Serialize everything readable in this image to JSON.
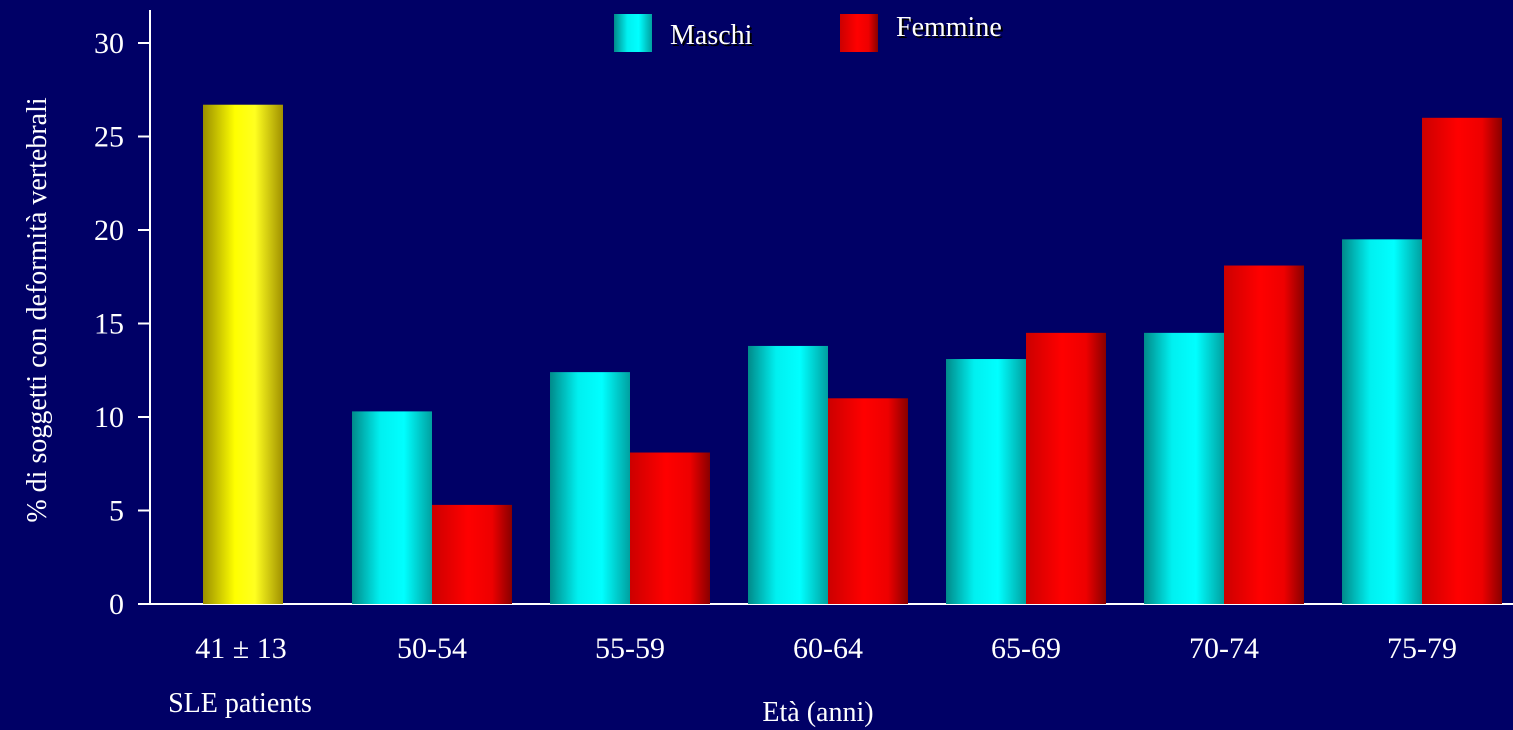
{
  "chart_data": {
    "type": "bar",
    "categories": [
      "41 ± 13",
      "50-54",
      "55-59",
      "60-64",
      "65-69",
      "70-74",
      "75-79"
    ],
    "group_label": "SLE patients",
    "xlabel": "Età (anni)",
    "ylabel": "% di soggetti con deformità vertebrali",
    "ylim": [
      0,
      31
    ],
    "yticks": [
      0,
      5,
      10,
      15,
      20,
      25,
      30
    ],
    "legend_position": "top-center",
    "series": [
      {
        "name": "Maschi",
        "color": "#00e8e8",
        "values": [
          null,
          10.3,
          12.4,
          13.8,
          13.1,
          14.5,
          19.5
        ]
      },
      {
        "name": "Femmine",
        "color": "#ff0000",
        "values": [
          null,
          5.3,
          8.1,
          11.0,
          14.5,
          18.1,
          26.0
        ]
      }
    ],
    "highlight": {
      "name": "",
      "color": "#ffff00",
      "category_index": 0,
      "value": 26.7
    }
  }
}
